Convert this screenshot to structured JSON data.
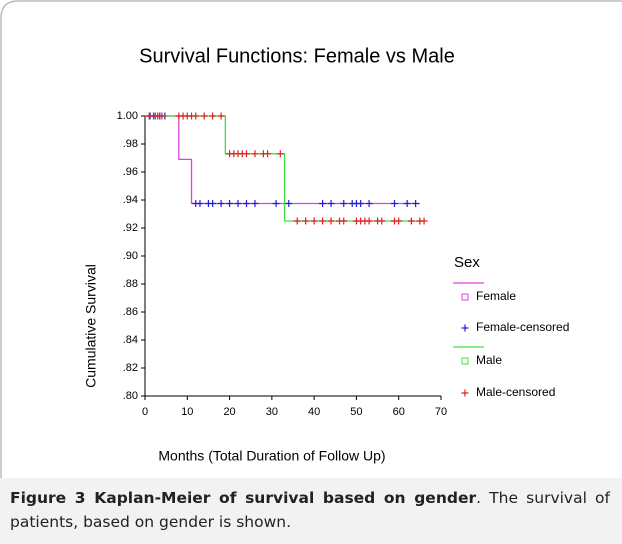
{
  "chart_data": {
    "type": "line",
    "title": "Survival Functions: Female vs Male",
    "x_label": "Months (Total Duration of Follow Up)",
    "y_label": "Cumulative Survival",
    "legend_title": "Sex",
    "xlim": [
      0,
      70
    ],
    "xticks": [
      0,
      10,
      20,
      30,
      40,
      50,
      60,
      70
    ],
    "ylim": [
      0.8,
      1.0
    ],
    "yticks": [
      {
        "value": 0.8,
        "label": ".80"
      },
      {
        "value": 0.82,
        "label": ".82"
      },
      {
        "value": 0.84,
        "label": ".84"
      },
      {
        "value": 0.86,
        "label": ".86"
      },
      {
        "value": 0.88,
        "label": ".88"
      },
      {
        "value": 0.9,
        "label": ".90"
      },
      {
        "value": 0.92,
        "label": ".92"
      },
      {
        "value": 0.94,
        "label": ".94"
      },
      {
        "value": 0.96,
        "label": ".96"
      },
      {
        "value": 0.98,
        "label": ".98"
      },
      {
        "value": 1.0,
        "label": "1.00"
      }
    ],
    "grid": false,
    "series": [
      {
        "name": "Female",
        "kind": "step",
        "color": "#e040e0",
        "x": [
          0,
          8,
          8,
          11,
          11,
          65
        ],
        "values": [
          1.0,
          1.0,
          0.969,
          0.969,
          0.9375,
          0.9375
        ]
      },
      {
        "name": "Female-censored",
        "kind": "censored",
        "color": "#2020d0",
        "x": [
          1.2,
          2.4,
          3.5,
          4.7,
          12,
          13,
          15,
          16,
          18,
          20,
          22,
          24,
          26,
          31,
          34,
          42,
          44,
          47,
          49,
          50,
          51,
          53,
          59,
          62,
          64
        ],
        "values": [
          1.0,
          1.0,
          1.0,
          1.0,
          0.9375,
          0.9375,
          0.9375,
          0.9375,
          0.9375,
          0.9375,
          0.9375,
          0.9375,
          0.9375,
          0.9375,
          0.9375,
          0.9375,
          0.9375,
          0.9375,
          0.9375,
          0.9375,
          0.9375,
          0.9375,
          0.9375,
          0.9375,
          0.9375
        ]
      },
      {
        "name": "Male",
        "kind": "step",
        "color": "#40e040",
        "x": [
          0,
          19,
          19,
          33,
          33,
          66
        ],
        "values": [
          1.0,
          1.0,
          0.973,
          0.973,
          0.925,
          0.925
        ]
      },
      {
        "name": "Male-censored",
        "kind": "censored",
        "color": "#e02020",
        "x": [
          1,
          2,
          3,
          4,
          8,
          9,
          10,
          11,
          12,
          14,
          16,
          18,
          20,
          21,
          22,
          23,
          24,
          26,
          28,
          29,
          32,
          36,
          38,
          40,
          42,
          44,
          46,
          47,
          50,
          51,
          52,
          53,
          55,
          56,
          59,
          60,
          63,
          65,
          66
        ],
        "values": [
          1.0,
          1.0,
          1.0,
          1.0,
          1.0,
          1.0,
          1.0,
          1.0,
          1.0,
          1.0,
          1.0,
          1.0,
          0.973,
          0.973,
          0.973,
          0.973,
          0.973,
          0.973,
          0.973,
          0.973,
          0.973,
          0.925,
          0.925,
          0.925,
          0.925,
          0.925,
          0.925,
          0.925,
          0.925,
          0.925,
          0.925,
          0.925,
          0.925,
          0.925,
          0.925,
          0.925,
          0.925,
          0.925,
          0.925
        ]
      }
    ]
  },
  "caption": {
    "label": "Figure 3 Kaplan-Meier of survival based on gender",
    "text": ". The survival of patients, based on gender is shown."
  }
}
